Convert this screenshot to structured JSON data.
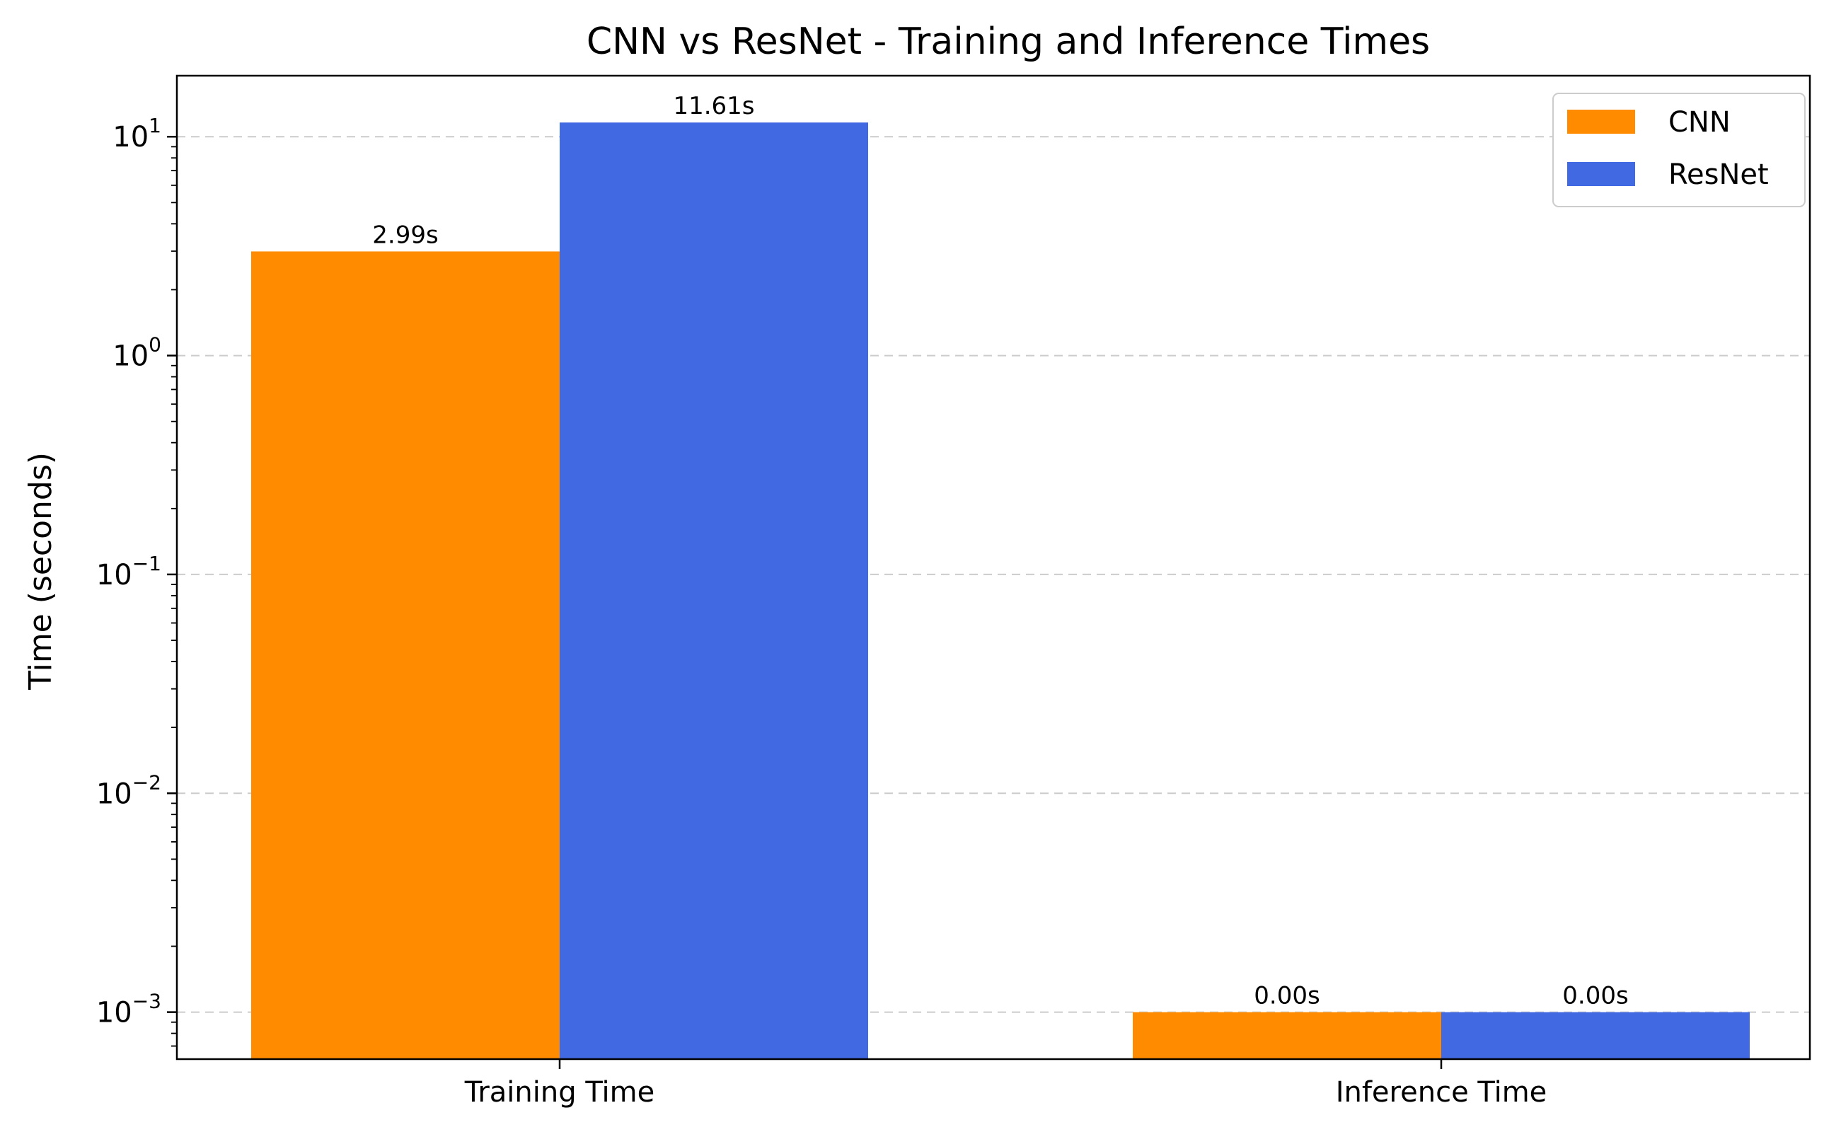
{
  "chart_data": {
    "type": "bar",
    "title": "CNN vs ResNet - Training and Inference Times",
    "xlabel": "",
    "ylabel": "Time (seconds)",
    "yscale": "log",
    "ylim": [
      0.00061,
      19
    ],
    "yticks": [
      {
        "value": 0.001,
        "base": "10",
        "exp": "−3"
      },
      {
        "value": 0.01,
        "base": "10",
        "exp": "−2"
      },
      {
        "value": 0.1,
        "base": "10",
        "exp": "−1"
      },
      {
        "value": 1,
        "base": "10",
        "exp": "0"
      },
      {
        "value": 10,
        "base": "10",
        "exp": "1"
      }
    ],
    "categories": [
      "Training Time",
      "Inference Time"
    ],
    "series": [
      {
        "name": "CNN",
        "color": "#ff8c00",
        "values": [
          2.99,
          0.001
        ],
        "labels": [
          "2.99s",
          "0.00s"
        ]
      },
      {
        "name": "ResNet",
        "color": "#4169e1",
        "values": [
          11.61,
          0.001
        ],
        "labels": [
          "11.61s",
          "0.00s"
        ]
      }
    ],
    "grid": {
      "axis": "y",
      "style": "dashed",
      "color": "#cccccc"
    },
    "legend": {
      "position": "top-right"
    }
  }
}
